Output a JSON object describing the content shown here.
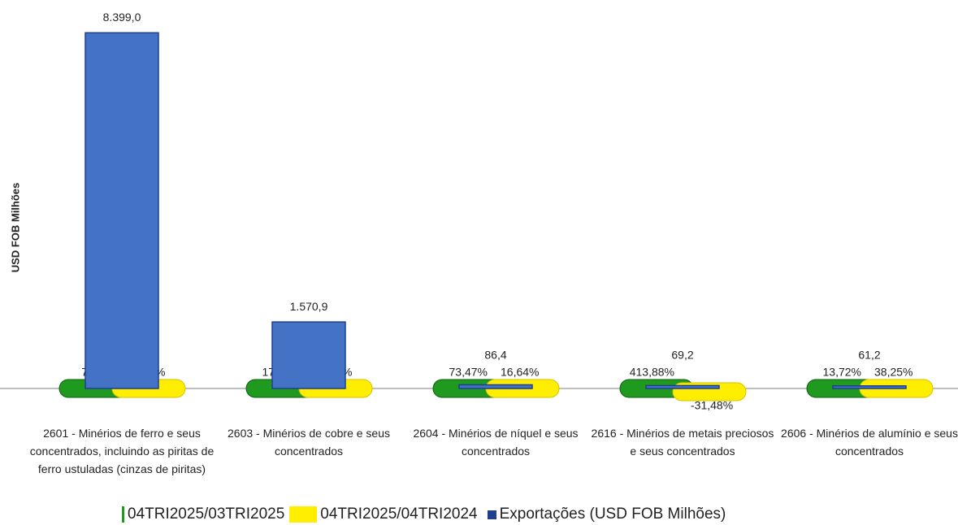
{
  "chart_data": {
    "type": "bar",
    "y_label": "USD FOB Milhões",
    "categories": [
      "2601 - Minérios de ferro e seus concentrados, incluindo as piritas de ferro ustuladas (cinzas de piritas)",
      "2603 - Minérios de cobre e seus concentrados",
      "2604 - Minérios de níquel e seus concentrados",
      "2616 - Minérios de metais preciosos e seus concentrados",
      "2606 - Minérios de alumínio e seus concentrados"
    ],
    "ylim": [
      0,
      9000
    ],
    "series": [
      {
        "name": "Exportações (USD FOB Milhões)",
        "color": "#4472c4",
        "values": [
          8399.0,
          1570.9,
          86.4,
          69.2,
          61.2
        ],
        "value_labels": [
          "8.399,0",
          "1.570,9",
          "86,4",
          "69,2",
          "61,2"
        ]
      },
      {
        "name": "04TRI2025/03TRI2025",
        "color": "#1f9a1f",
        "axis": "y2",
        "values": [
          7.57,
          17.5,
          73.47,
          413.88,
          13.72
        ],
        "value_labels": [
          "7,57%",
          "17,50%",
          "73,47%",
          "413,88%",
          "13,72%"
        ]
      },
      {
        "name": "04TRI2025/04TRI2024",
        "color": "#ffee00",
        "axis": "y2",
        "values": [
          24.5,
          23.36,
          16.64,
          -31.48,
          38.25
        ],
        "value_labels": [
          "24,50%",
          "23,36%",
          "16,64%",
          "-31,48%",
          "38,25%"
        ]
      }
    ]
  }
}
